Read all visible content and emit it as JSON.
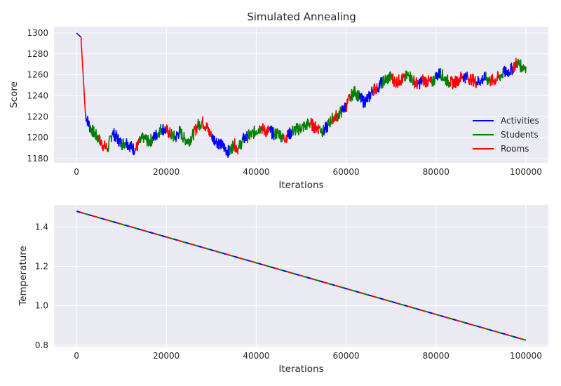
{
  "figure": {
    "title": "Simulated Annealing"
  },
  "chart_data": [
    {
      "type": "line",
      "title": "Simulated Annealing",
      "xlabel": "Iterations",
      "ylabel": "Score",
      "xlim": [
        -5000,
        105000
      ],
      "ylim": [
        1176,
        1306
      ],
      "grid": true,
      "legend_position": "lower-right",
      "x_ticks": [
        0,
        20000,
        40000,
        60000,
        80000,
        100000
      ],
      "y_ticks": [
        1180,
        1200,
        1220,
        1240,
        1260,
        1280,
        1300
      ],
      "legend": [
        {
          "name": "Activities",
          "color": "#0000ff"
        },
        {
          "name": "Students",
          "color": "#008000"
        },
        {
          "name": "Rooms",
          "color": "#ff0000"
        }
      ],
      "series": [
        {
          "name": "Score",
          "x": [
            0,
            1000,
            2000,
            3000,
            4000,
            5000,
            6000,
            7000,
            8000,
            9000,
            10000,
            11000,
            12000,
            13000,
            14000,
            15000,
            16000,
            17000,
            18000,
            19000,
            20000,
            21000,
            22000,
            23000,
            24000,
            25000,
            26000,
            27000,
            28000,
            29000,
            30000,
            31000,
            32000,
            33000,
            34000,
            35000,
            36000,
            37000,
            38000,
            39000,
            40000,
            41000,
            42000,
            43000,
            44000,
            45000,
            46000,
            47000,
            48000,
            49000,
            50000,
            51000,
            52000,
            53000,
            54000,
            55000,
            56000,
            57000,
            58000,
            59000,
            60000,
            61000,
            62000,
            63000,
            64000,
            65000,
            66000,
            67000,
            68000,
            69000,
            70000,
            71000,
            72000,
            73000,
            74000,
            75000,
            76000,
            77000,
            78000,
            79000,
            80000,
            81000,
            82000,
            83000,
            84000,
            85000,
            86000,
            87000,
            88000,
            89000,
            90000,
            91000,
            92000,
            93000,
            94000,
            95000,
            96000,
            97000,
            98000,
            99000,
            100000
          ],
          "values": [
            1300,
            1296,
            1222,
            1210,
            1204,
            1198,
            1192,
            1190,
            1205,
            1200,
            1194,
            1196,
            1192,
            1188,
            1195,
            1201,
            1196,
            1199,
            1204,
            1209,
            1207,
            1203,
            1200,
            1206,
            1199,
            1197,
            1203,
            1212,
            1215,
            1210,
            1201,
            1197,
            1194,
            1190,
            1186,
            1194,
            1189,
            1198,
            1201,
            1203,
            1207,
            1210,
            1206,
            1207,
            1203,
            1205,
            1199,
            1202,
            1206,
            1208,
            1209,
            1212,
            1214,
            1210,
            1209,
            1206,
            1212,
            1219,
            1221,
            1225,
            1230,
            1240,
            1244,
            1238,
            1234,
            1238,
            1246,
            1248,
            1253,
            1256,
            1258,
            1253,
            1255,
            1257,
            1260,
            1254,
            1251,
            1255,
            1254,
            1252,
            1258,
            1262,
            1256,
            1253,
            1252,
            1256,
            1259,
            1257,
            1256,
            1253,
            1255,
            1257,
            1254,
            1255,
            1258,
            1262,
            1263,
            1266,
            1272,
            1268,
            1268
          ]
        }
      ],
      "segment_order": [
        "#0000ff",
        "#008000",
        "#ff0000"
      ]
    },
    {
      "type": "line",
      "title": "",
      "xlabel": "Iterations",
      "ylabel": "Temperature",
      "xlim": [
        -5000,
        105000
      ],
      "ylim": [
        0.792,
        1.512
      ],
      "grid": true,
      "x_ticks": [
        0,
        20000,
        40000,
        60000,
        80000,
        100000
      ],
      "y_ticks": [
        0.8,
        1.0,
        1.2,
        1.4
      ],
      "series": [
        {
          "name": "Temperature",
          "x": [
            0,
            100000
          ],
          "values": [
            1.48,
            0.825
          ]
        }
      ],
      "dash_colors": [
        "#0000ff",
        "#ff0000",
        "#008000"
      ]
    }
  ]
}
